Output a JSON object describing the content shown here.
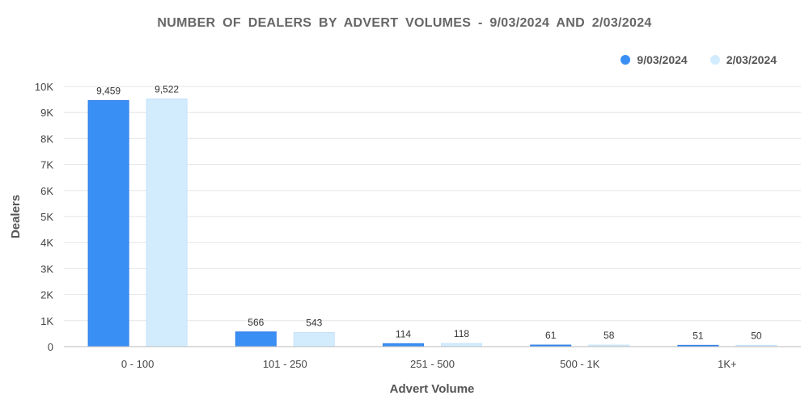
{
  "chart_data": {
    "type": "bar",
    "title": "NUMBER OF DEALERS BY ADVERT VOLUMES - 9/03/2024 AND 2/03/2024",
    "xlabel": "Advert Volume",
    "ylabel": "Dealers",
    "categories": [
      "0 - 100",
      "101 - 250",
      "251 - 500",
      "500 - 1K",
      "1K+"
    ],
    "series": [
      {
        "name": "9/03/2024",
        "color": "#3a8ff5",
        "values": [
          9459,
          566,
          114,
          61,
          51
        ],
        "labels": [
          "9,459",
          "566",
          "114",
          "61",
          "51"
        ]
      },
      {
        "name": "2/03/2024",
        "color": "#d3ecfd",
        "values": [
          9522,
          543,
          118,
          58,
          50
        ],
        "labels": [
          "9,522",
          "543",
          "118",
          "58",
          "50"
        ]
      }
    ],
    "ylim": [
      0,
      10000
    ],
    "yticks": [
      0,
      1000,
      2000,
      3000,
      4000,
      5000,
      6000,
      7000,
      8000,
      9000,
      10000
    ],
    "ytick_labels": [
      "0",
      "1K",
      "2K",
      "3K",
      "4K",
      "5K",
      "6K",
      "7K",
      "8K",
      "9K",
      "10K"
    ],
    "grid": true,
    "legend_position": "top-right"
  }
}
